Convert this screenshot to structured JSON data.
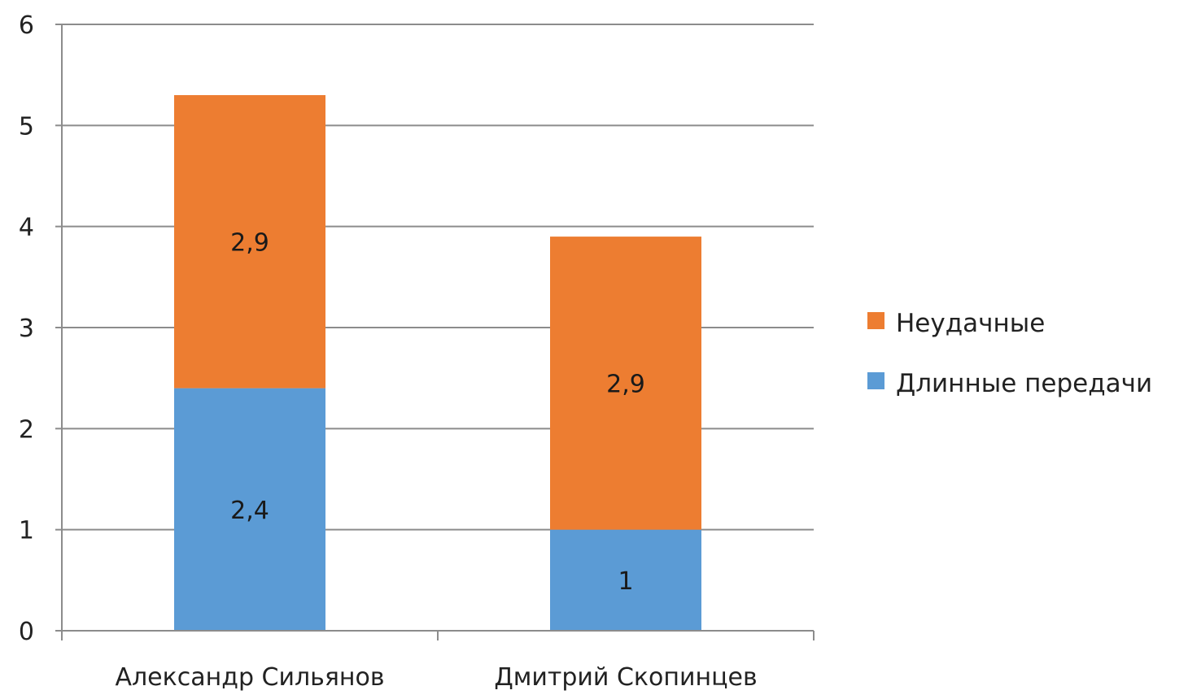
{
  "chart_data": {
    "type": "bar",
    "stacked": true,
    "categories": [
      "Александр Сильянов",
      "Дмитрий Скопинцев"
    ],
    "series": [
      {
        "name": "Длинные передачи",
        "values": [
          2.4,
          1
        ],
        "labels": [
          "2,4",
          "1"
        ],
        "color": "#5b9bd5"
      },
      {
        "name": "Неудачные",
        "values": [
          2.9,
          2.9
        ],
        "labels": [
          "2,9",
          "2,9"
        ],
        "color": "#ed7d31"
      }
    ],
    "ylim": [
      0,
      6
    ],
    "yticks": [
      0,
      1,
      2,
      3,
      4,
      5,
      6
    ],
    "ytick_labels": [
      "0",
      "1",
      "2",
      "3",
      "4",
      "5",
      "6"
    ],
    "grid": true,
    "legend_position": "right",
    "legend_order": [
      "Неудачные",
      "Длинные передачи"
    ],
    "title": "",
    "xlabel": "",
    "ylabel": "",
    "gridline_color": "#8c8c8c",
    "axis_color": "#8c8c8c"
  }
}
